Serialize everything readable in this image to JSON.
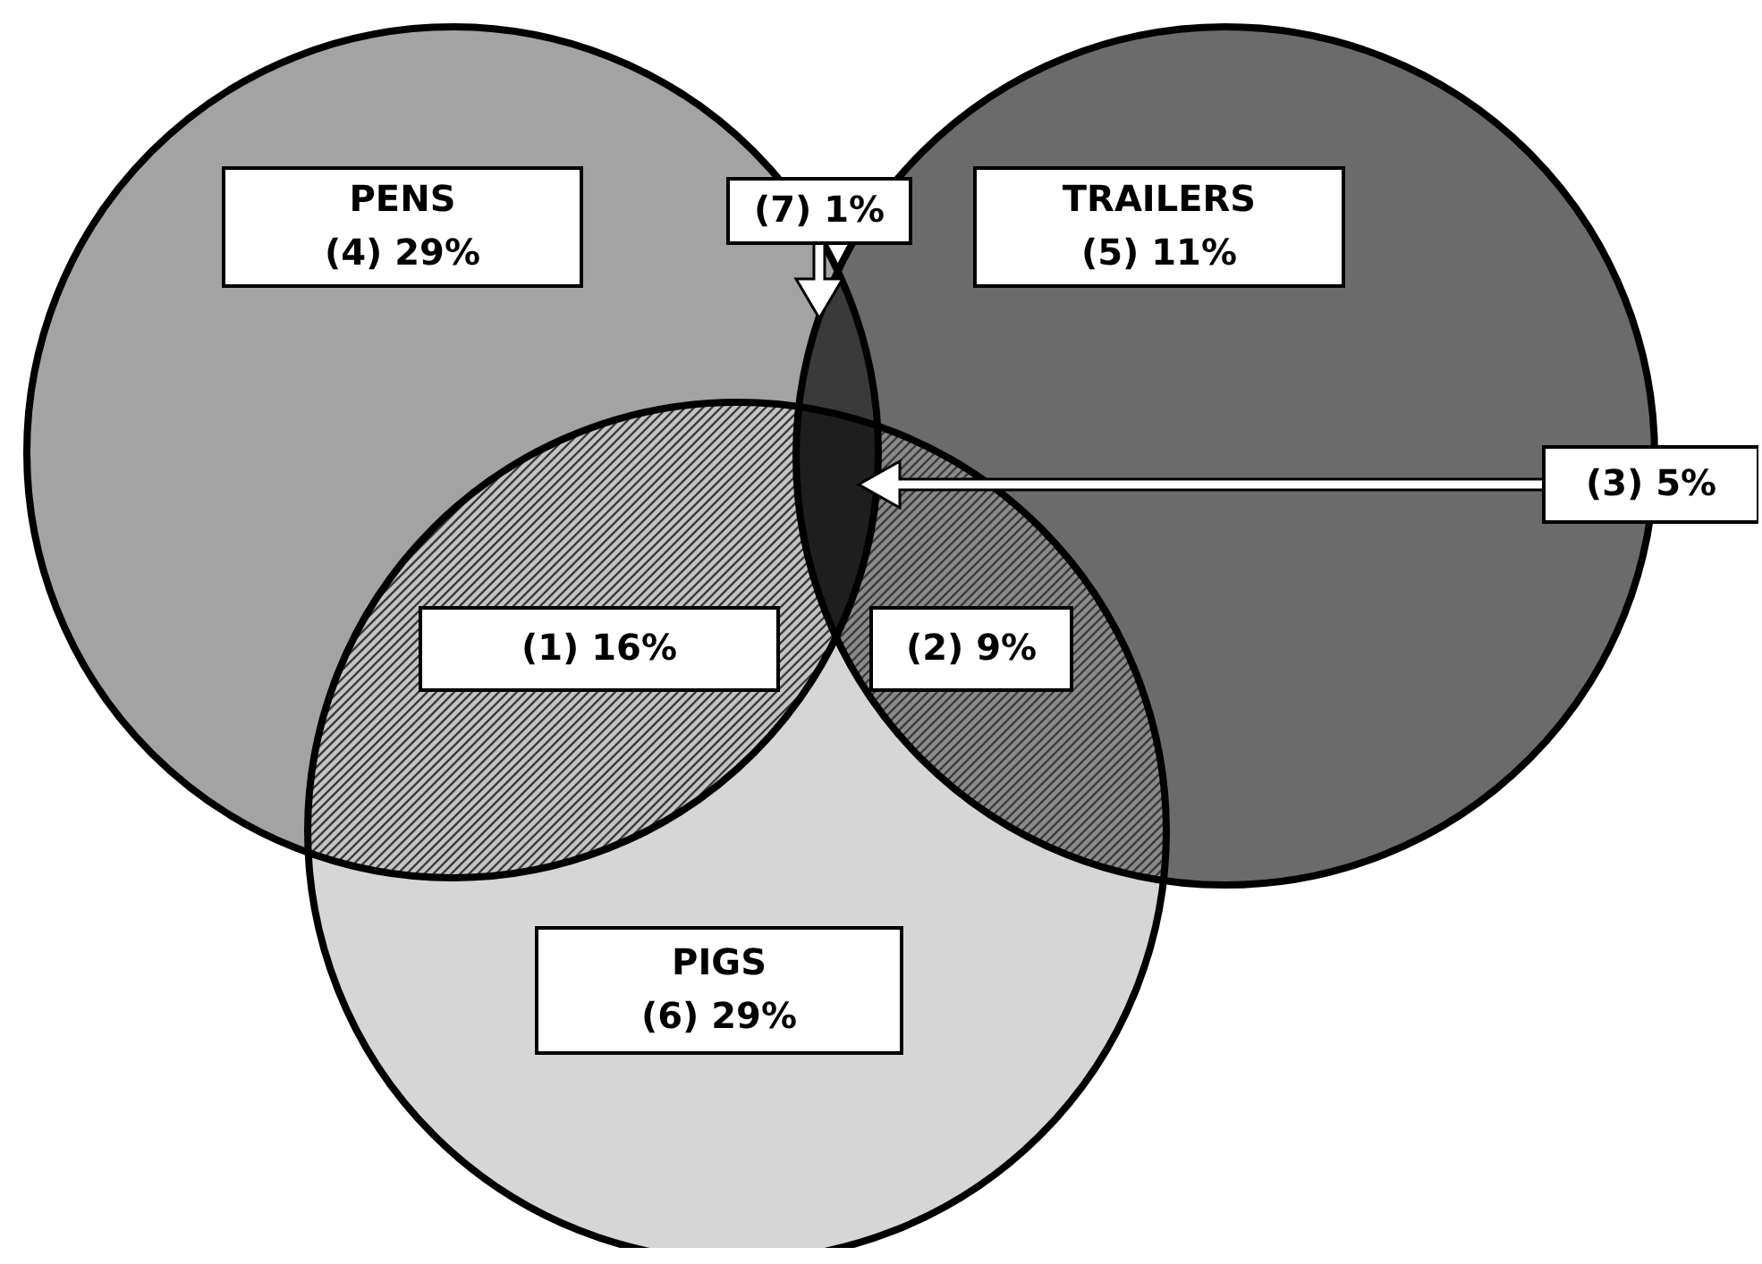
{
  "chart_data": {
    "type": "other",
    "categories": [
      "(1)",
      "(2)",
      "(3)",
      "(4)",
      "(5)",
      "(6)",
      "(7)"
    ],
    "values": [
      16,
      9,
      5,
      29,
      11,
      29,
      1
    ],
    "value_labels": [
      "16%",
      "9%",
      "5%",
      "29%",
      "11%",
      "29%",
      "1%"
    ],
    "data_labels": true,
    "annotations": [
      "PENS",
      "TRAILERS",
      "PIGS"
    ]
  }
}
